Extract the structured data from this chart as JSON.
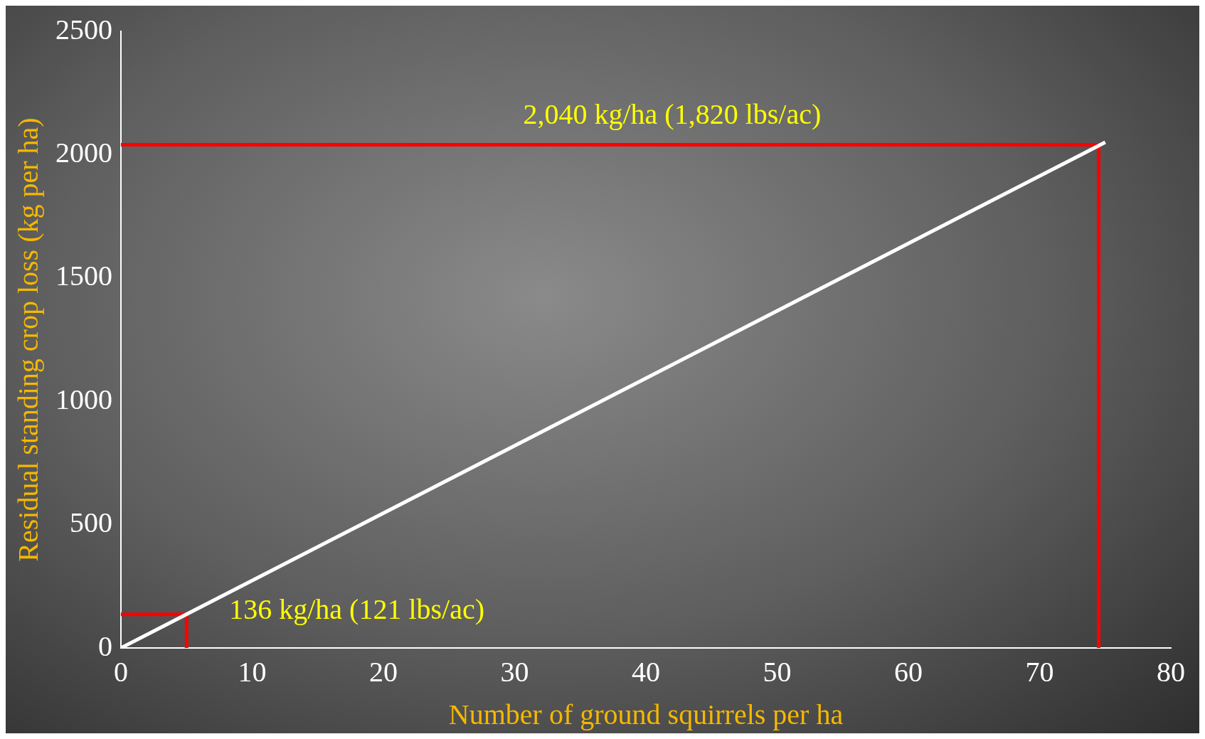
{
  "chart_data": {
    "type": "line",
    "xlabel": "Number of ground squirrels per ha",
    "ylabel": "Residual standing crop loss (kg per ha)",
    "xlim": [
      0,
      80
    ],
    "xticks": [
      0,
      10,
      20,
      30,
      40,
      50,
      60,
      70,
      80
    ],
    "ylim": [
      0,
      2500
    ],
    "yticks": [
      0,
      500,
      1000,
      1500,
      2000,
      2500
    ],
    "grid": false,
    "legend": false,
    "marker": "none",
    "series": [
      {
        "color": "#ffffff",
        "x": [
          0,
          75
        ],
        "values": [
          0,
          2050
        ]
      },
      {
        "color": "#ff0000",
        "x": [
          0,
          74.5,
          74.5
        ],
        "values": [
          2040,
          2040,
          0
        ]
      },
      {
        "color": "#ff0000",
        "x": [
          0,
          5,
          5
        ],
        "values": [
          136,
          136,
          0
        ]
      }
    ],
    "annotations": [
      {
        "text": "2,040 kg/ha (1,820 lbs/ac)",
        "x": 42,
        "y": 2040
      },
      {
        "text": "136 kg/ha (121 lbs/ac)",
        "x": 5,
        "y": 136
      }
    ]
  }
}
